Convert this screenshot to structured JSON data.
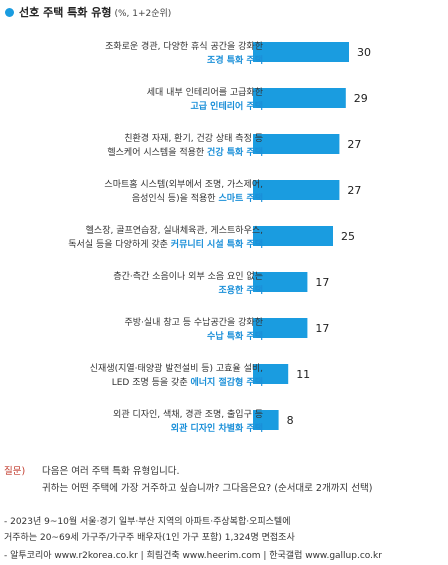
{
  "header": {
    "title": "선호 주택 특화 유형",
    "unit": "(%, 1+2순위)"
  },
  "colors": {
    "bar": "#1a9ce0",
    "highlight": "#1a8fd8",
    "text": "#333333"
  },
  "chart_data": {
    "type": "bar",
    "orientation": "horizontal",
    "categories": [
      {
        "line1": "조화로운 경관, 다양한 휴식 공간을 강화한",
        "line2_plain": "",
        "line2_bold": "조경 특화 주택"
      },
      {
        "line1": "세대 내부 인테리어를 고급화한",
        "line2_plain": "",
        "line2_bold": "고급 인테리어 주택"
      },
      {
        "line1": "친환경 자재, 환기, 건강 상태 측정 등",
        "line2_plain": "헬스케어 시스템을 적용한 ",
        "line2_bold": "건강 특화 주택"
      },
      {
        "line1": "스마트홈 시스템(외부에서 조명, 가스제어,",
        "line2_plain": "음성인식 등)을 적용한 ",
        "line2_bold": "스마트 주택"
      },
      {
        "line1": "헬스장, 골프연습장, 실내체육관, 게스트하우스,",
        "line2_plain": "독서실 등을 다양하게 갖춘 ",
        "line2_bold": "커뮤니티 시설 특화 주택"
      },
      {
        "line1": "층간·측간 소음이나 외부 소음 요인 없는",
        "line2_plain": "",
        "line2_bold": "조용한 주택"
      },
      {
        "line1": "주방·실내 창고 등 수납공간을 강화한",
        "line2_plain": "",
        "line2_bold": "수납 특화 주택"
      },
      {
        "line1": "신재생(지열·태양광 발전설비 등) 고효율 설비,",
        "line2_plain": "LED 조명 등을 갖춘 ",
        "line2_bold": "에너지 절감형 주택"
      },
      {
        "line1": "외관 디자인, 색채, 경관 조명, 출입구 등",
        "line2_plain": "",
        "line2_bold": "외관 디자인 차별화 주택"
      }
    ],
    "values": [
      30,
      29,
      27,
      27,
      25,
      17,
      17,
      11,
      8
    ]
  },
  "footer": {
    "question_label": "질문)",
    "question_line1": "다음은 여러 주택 특화 유형입니다.",
    "question_line2": "귀하는 어떤 주택에 가장 거주하고 싶습니까? 그다음은요? (순서대로 2개까지 선택)",
    "note_line1": "- 2023년 9~10월 서울·경기 일부·부산 지역의 아파트·주상복합·오피스텔에",
    "note_line2": "  거주하는 20~69세 가구주/가구주 배우자(1인 가구 포함) 1,324명 면접조사",
    "note_line3": "- 알투코리아 www.r2korea.co.kr | 희림건축 www.heerim.com | 한국갤럽 www.gallup.co.kr"
  }
}
